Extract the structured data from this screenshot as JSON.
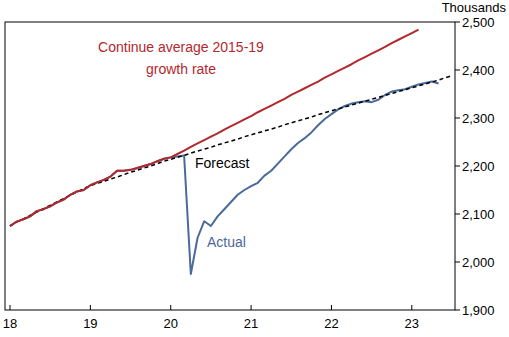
{
  "chart_data": {
    "type": "line",
    "ylabel": "Thousands",
    "categories": [
      "18",
      null,
      null,
      null,
      null,
      null,
      null,
      null,
      null,
      null,
      null,
      null,
      "19",
      null,
      null,
      null,
      null,
      null,
      null,
      null,
      null,
      null,
      null,
      null,
      "20",
      null,
      null,
      null,
      null,
      null,
      null,
      null,
      null,
      null,
      null,
      null,
      "21",
      null,
      null,
      null,
      null,
      null,
      null,
      null,
      null,
      null,
      null,
      null,
      "22",
      null,
      null,
      null,
      null,
      null,
      null,
      null,
      null,
      null,
      null,
      null,
      "23",
      null,
      null,
      null,
      null,
      null,
      null
    ],
    "ylim": [
      1900,
      2500
    ],
    "yticks": [
      {
        "value": 1900,
        "label": "1,900"
      },
      {
        "value": 2000,
        "label": "2,000"
      },
      {
        "value": 2100,
        "label": "2,100"
      },
      {
        "value": 2200,
        "label": "2,200"
      },
      {
        "value": 2300,
        "label": "2,300"
      },
      {
        "value": 2400,
        "label": "2,400"
      },
      {
        "value": 2500,
        "label": "2,500"
      }
    ],
    "grid": false,
    "series": [
      {
        "name": "Continue average 2015-19 growth rate",
        "color": "#b3282d",
        "line_style": "solid",
        "values": [
          2075,
          2084,
          2089,
          2095,
          2106,
          2110,
          2116,
          2124,
          2130,
          2140,
          2147,
          2150,
          2160,
          2166,
          2171,
          2178,
          2190,
          2190,
          2192,
          2196,
          2200,
          2204,
          2210,
          2215,
          2218,
          2225,
          2232,
          2240,
          2247,
          2254,
          2261,
          2268,
          2276,
          2283,
          2290,
          2297,
          2304,
          2312,
          2319,
          2326,
          2333,
          2340,
          2348,
          2355,
          2362,
          2369,
          2376,
          2384,
          2391,
          2398,
          2405,
          2412,
          2420,
          2427,
          2434,
          2441,
          2448,
          2456,
          2463,
          2470,
          2477,
          2484,
          null,
          null,
          null,
          null,
          null
        ]
      },
      {
        "name": "Forecast",
        "color": "#000000",
        "line_style": "dashed",
        "values": [
          2075,
          2083,
          2090,
          2097,
          2104,
          2111,
          2118,
          2125,
          2132,
          2139,
          2146,
          2153,
          2159,
          2164,
          2168,
          2173,
          2177,
          2182,
          2187,
          2191,
          2196,
          2200,
          2205,
          2210,
          2214,
          2218,
          2222,
          2227,
          2231,
          2235,
          2239,
          2244,
          2248,
          2252,
          2256,
          2261,
          2265,
          2269,
          2273,
          2277,
          2281,
          2286,
          2290,
          2294,
          2298,
          2302,
          2307,
          2311,
          2315,
          2319,
          2323,
          2327,
          2331,
          2335,
          2339,
          2343,
          2347,
          2351,
          2355,
          2359,
          2363,
          2367,
          2371,
          2375,
          2379,
          2384,
          2388
        ]
      },
      {
        "name": "Actual",
        "color": "#4a6a9a",
        "line_style": "solid",
        "values": [
          2075,
          2084,
          2089,
          2095,
          2106,
          2110,
          2116,
          2124,
          2130,
          2140,
          2147,
          2150,
          2160,
          2166,
          2171,
          2178,
          2190,
          2190,
          2192,
          2196,
          2200,
          2204,
          2210,
          2215,
          2218,
          2220,
          2222,
          1975,
          2050,
          2085,
          2075,
          2095,
          2110,
          2125,
          2140,
          2150,
          2158,
          2165,
          2180,
          2190,
          2205,
          2220,
          2235,
          2248,
          2258,
          2270,
          2285,
          2298,
          2308,
          2318,
          2325,
          2330,
          2333,
          2335,
          2333,
          2338,
          2348,
          2355,
          2358,
          2360,
          2365,
          2370,
          2373,
          2376,
          2372,
          null,
          null
        ]
      }
    ]
  }
}
